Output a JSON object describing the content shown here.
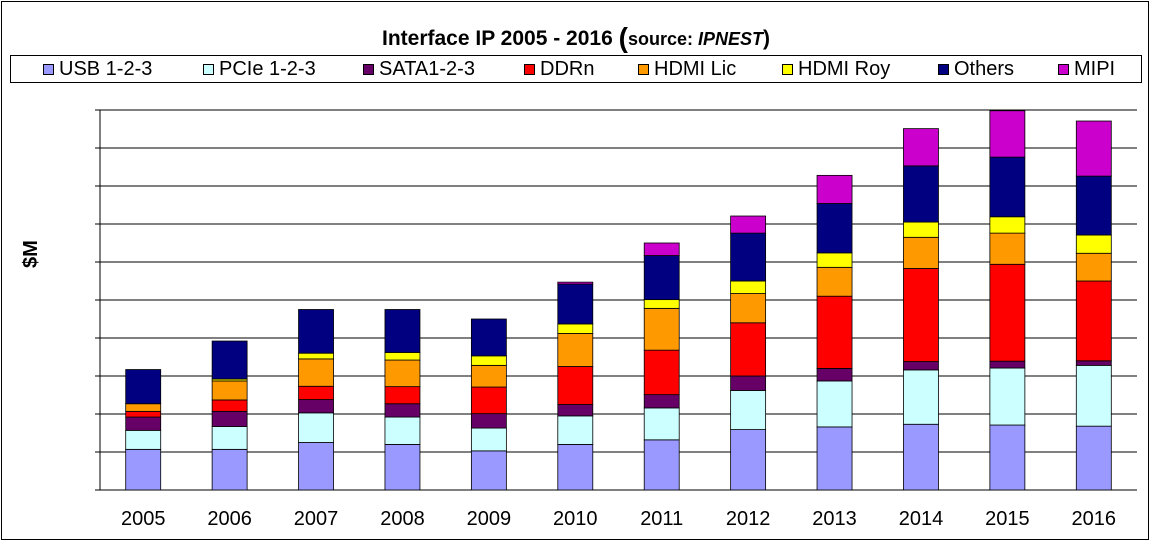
{
  "chart_data": {
    "type": "bar",
    "stacked": true,
    "title": {
      "main": "Interface IP  2005 - 2016 ",
      "paren_open": "(",
      "source_label": "source: ",
      "source": "IPNEST",
      "paren_close": ")"
    },
    "ylabel": "$M",
    "categories": [
      "2005",
      "2006",
      "2007",
      "2008",
      "2009",
      "2010",
      "2011",
      "2012",
      "2013",
      "2014",
      "2015",
      "2016"
    ],
    "ylim": [
      0,
      10
    ],
    "grid": true,
    "legend_position": "top",
    "series": [
      {
        "name": "USB 1-2-3",
        "color": "#9999ff",
        "values": [
          1.07,
          1.07,
          1.25,
          1.2,
          1.03,
          1.2,
          1.32,
          1.59,
          1.66,
          1.73,
          1.71,
          1.68
        ]
      },
      {
        "name": "PCIe 1-2-3",
        "color": "#ccffff",
        "values": [
          0.5,
          0.6,
          0.78,
          0.72,
          0.6,
          0.75,
          0.84,
          1.03,
          1.21,
          1.43,
          1.5,
          1.6
        ]
      },
      {
        "name": "SATA1-2-3",
        "color": "#660066",
        "values": [
          0.35,
          0.4,
          0.35,
          0.35,
          0.38,
          0.3,
          0.35,
          0.38,
          0.33,
          0.22,
          0.18,
          0.12
        ]
      },
      {
        "name": "DDRn",
        "color": "#ff0000",
        "values": [
          0.15,
          0.3,
          0.35,
          0.45,
          0.7,
          1.0,
          1.17,
          1.4,
          1.9,
          2.45,
          2.55,
          2.1
        ]
      },
      {
        "name": "HDMI Lic",
        "color": "#ff9900",
        "values": [
          0.2,
          0.5,
          0.72,
          0.7,
          0.57,
          0.87,
          1.1,
          0.77,
          0.76,
          0.82,
          0.82,
          0.73
        ]
      },
      {
        "name": "HDMI Roy",
        "color": "#ffff00",
        "values": [
          0,
          0.05,
          0.15,
          0.2,
          0.25,
          0.25,
          0.23,
          0.33,
          0.38,
          0.4,
          0.43,
          0.48
        ]
      },
      {
        "name": "Others",
        "color": "#000080",
        "values": [
          0.9,
          1.0,
          1.15,
          1.13,
          0.97,
          1.05,
          1.16,
          1.26,
          1.3,
          1.48,
          1.57,
          1.55
        ]
      },
      {
        "name": "MIPI",
        "color": "#cc00cc",
        "values": [
          0,
          0,
          0,
          0,
          0,
          0.05,
          0.33,
          0.45,
          0.74,
          0.98,
          1.22,
          1.45
        ]
      }
    ]
  }
}
